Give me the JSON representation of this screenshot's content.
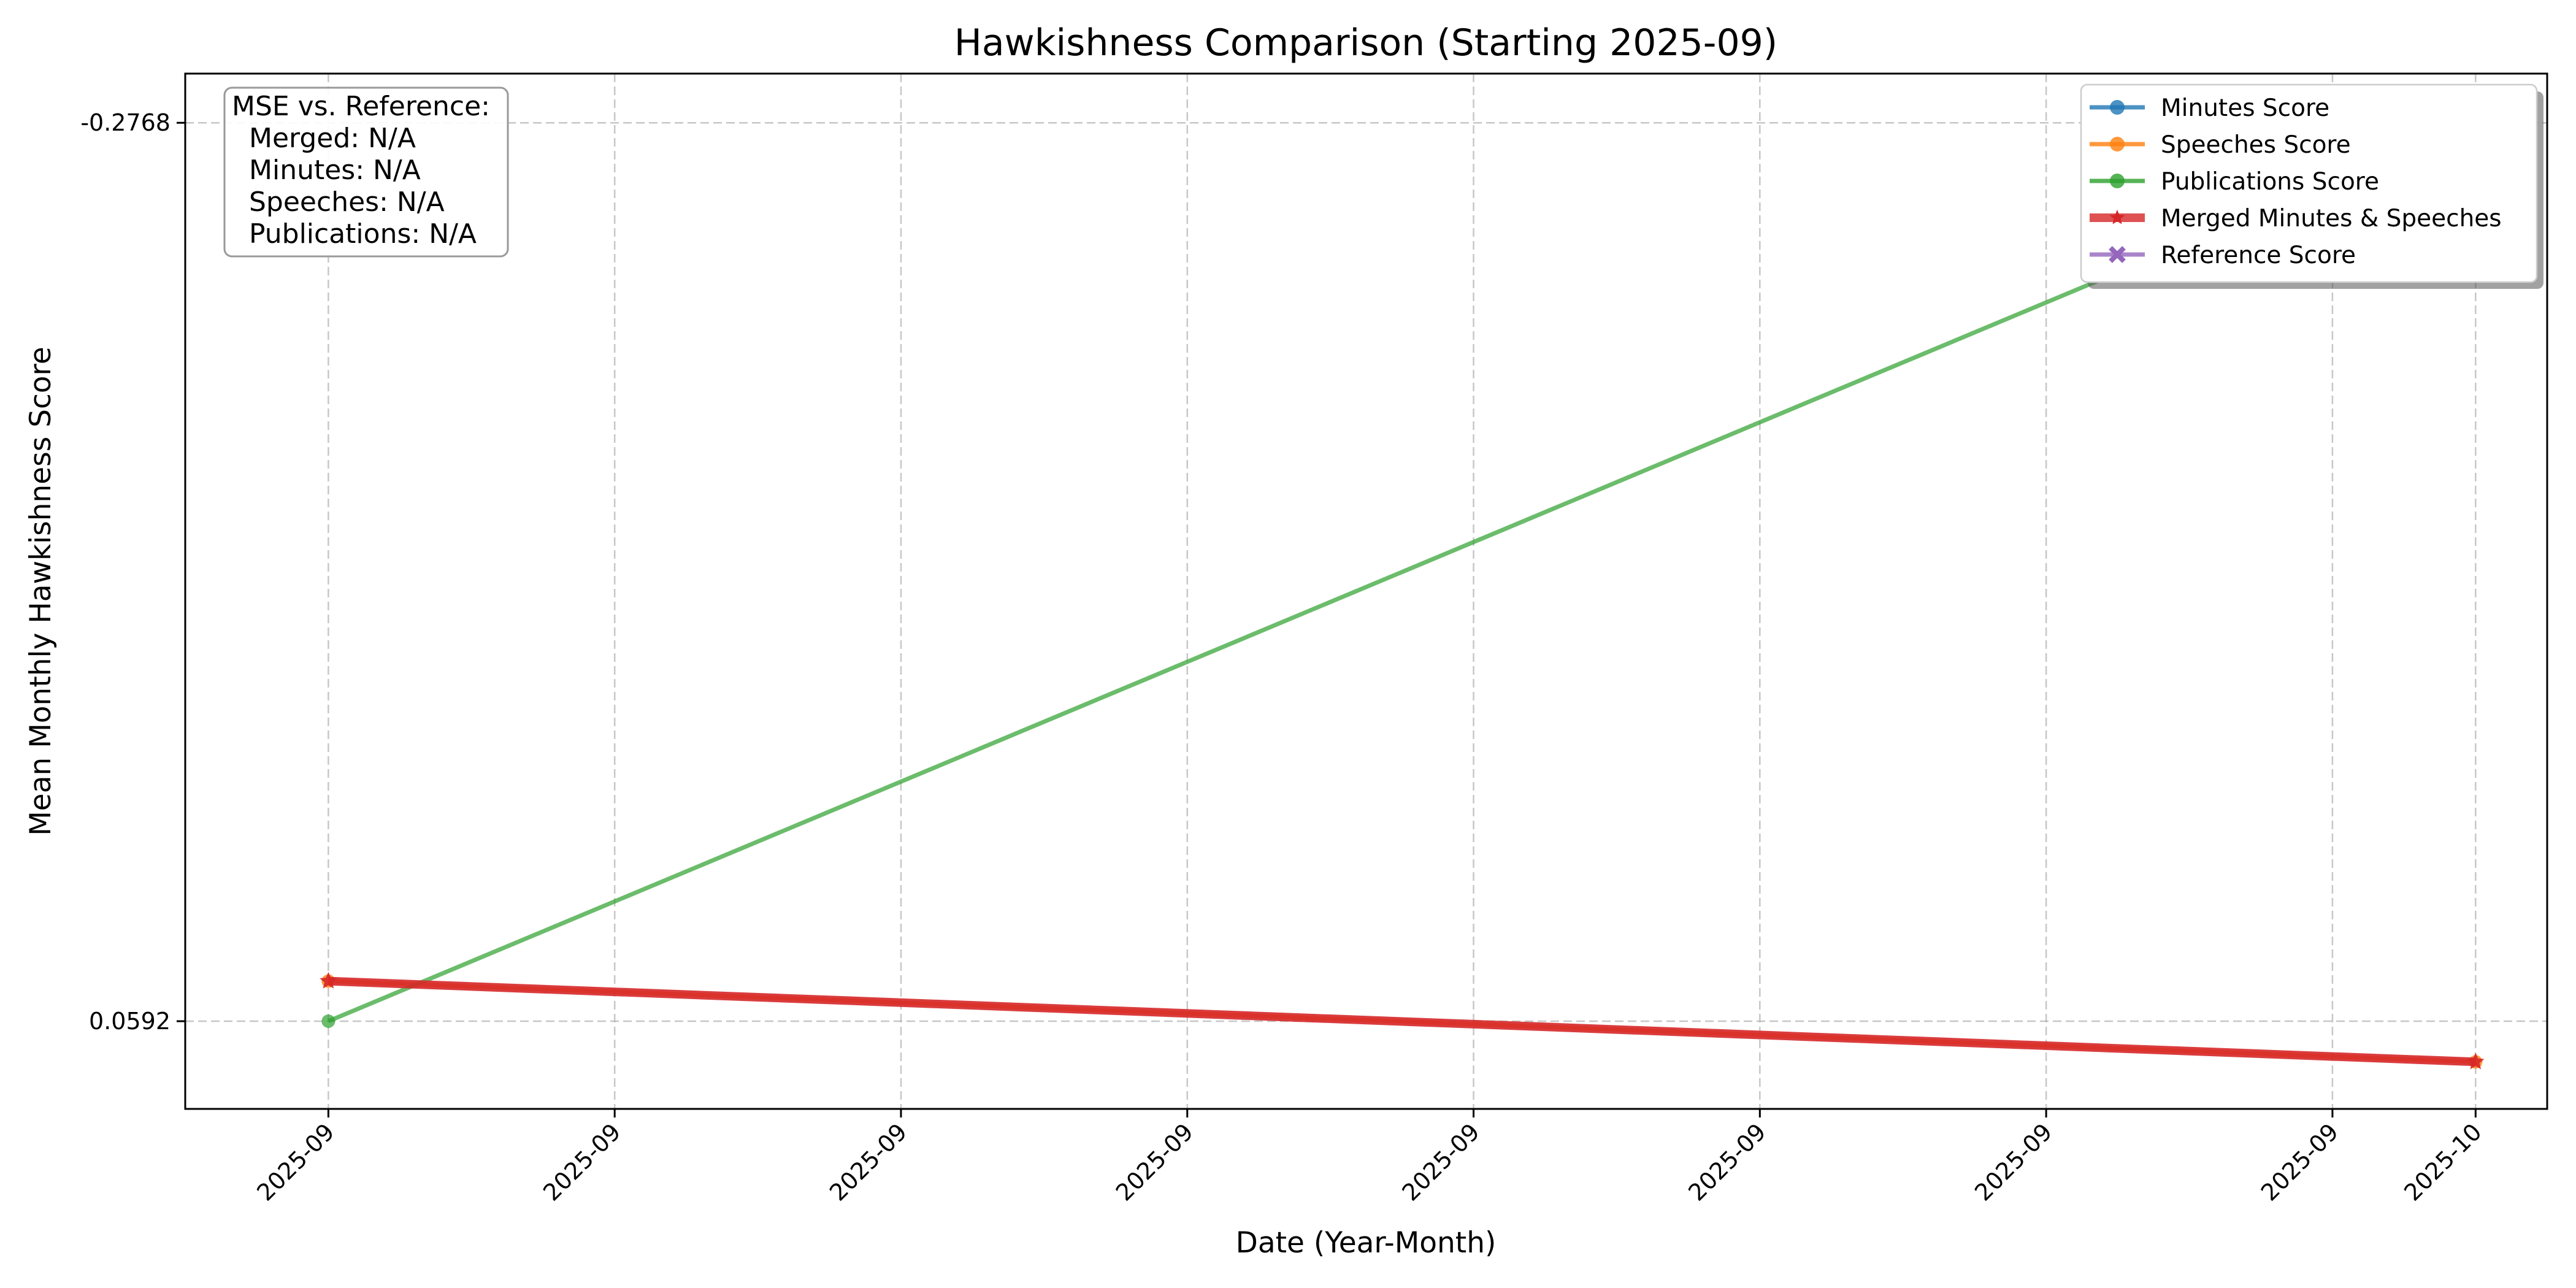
{
  "chart_data": {
    "type": "line",
    "title": "Hawkishness Comparison (Starting 2025-09)",
    "xlabel": "Date (Year-Month)",
    "ylabel": "Mean Monthly Hawkishness Score",
    "x_tick_labels": [
      "2025-09",
      "2025-09",
      "2025-09",
      "2025-09",
      "2025-09",
      "2025-09",
      "2025-09",
      "2025-09",
      "2025-10"
    ],
    "x_tick_dates": [
      "2025-09-01",
      "2025-09-05",
      "2025-09-09",
      "2025-09-13",
      "2025-09-17",
      "2025-09-21",
      "2025-09-25",
      "2025-09-29",
      "2025-10-01"
    ],
    "xlim": [
      "2025-08-30",
      "2025-10-02"
    ],
    "y_ticks": [
      -0.2768,
      0.0592
    ],
    "y_tick_labels": [
      "-0.2768",
      "0.0592"
    ],
    "ylim": [
      0.092,
      -0.2952
    ],
    "y_inverted": true,
    "grid": true,
    "legend_position": "top-right",
    "series": [
      {
        "name": "Minutes Score",
        "color": "#1f77b4",
        "marker": "circle",
        "x": [],
        "y": []
      },
      {
        "name": "Speeches Score",
        "color": "#ff7f0e",
        "marker": "circle",
        "x": [
          "2025-09-01",
          "2025-10-01"
        ],
        "y": [
          0.0442,
          0.0744
        ]
      },
      {
        "name": "Publications Score",
        "color": "#2ca02c",
        "marker": "circle",
        "x": [
          "2025-09-01",
          "2025-10-01"
        ],
        "y": [
          0.0592,
          -0.2768
        ]
      },
      {
        "name": "Merged Minutes & Speeches",
        "color": "#d62728",
        "marker": "star",
        "x": [
          "2025-09-01",
          "2025-10-01"
        ],
        "y": [
          0.0442,
          0.0744
        ]
      },
      {
        "name": "Reference Score",
        "color": "#9467bd",
        "marker": "x",
        "x": [],
        "y": []
      }
    ],
    "mse_box": {
      "title": "MSE vs. Reference:",
      "lines": [
        "Merged: N/A",
        "Minutes: N/A",
        "Speeches: N/A",
        "Publications: N/A"
      ]
    }
  }
}
